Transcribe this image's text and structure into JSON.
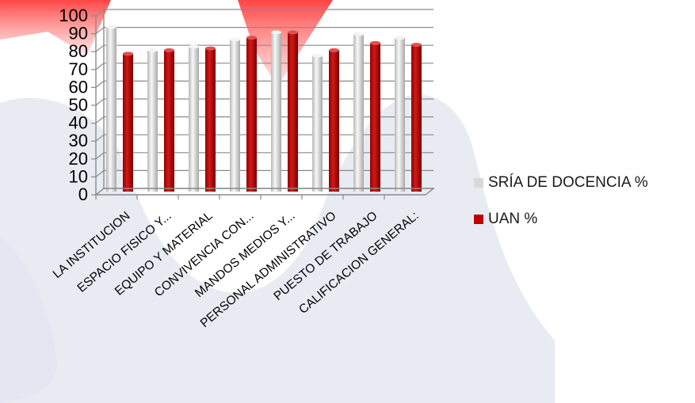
{
  "chart_data": {
    "type": "bar",
    "categories": [
      "LA INSTITUCION",
      "ESPACIO FISICO Y...",
      "EQUIPO Y MATERIAL",
      "CONVIVENCIA CON...",
      "MANDOS MEDIOS Y...",
      "PERSONAL ADMINISTRATIVO",
      "PUESTO DE TRABAJO",
      "CALIFICACION GENERAL:"
    ],
    "series": [
      {
        "name": "SRÍA DE DOCENCIA %",
        "color": "#d9d9d9",
        "values": [
          92,
          79,
          81,
          85,
          89,
          76,
          88,
          86
        ]
      },
      {
        "name": "UAN %",
        "color": "#c00000",
        "values": [
          77,
          79,
          80,
          86,
          89,
          79,
          83,
          82
        ]
      }
    ],
    "ylim": [
      0,
      100
    ],
    "yticks": [
      0,
      10,
      20,
      30,
      40,
      50,
      60,
      70,
      80,
      90,
      100
    ],
    "grid": true,
    "legend": "right"
  }
}
